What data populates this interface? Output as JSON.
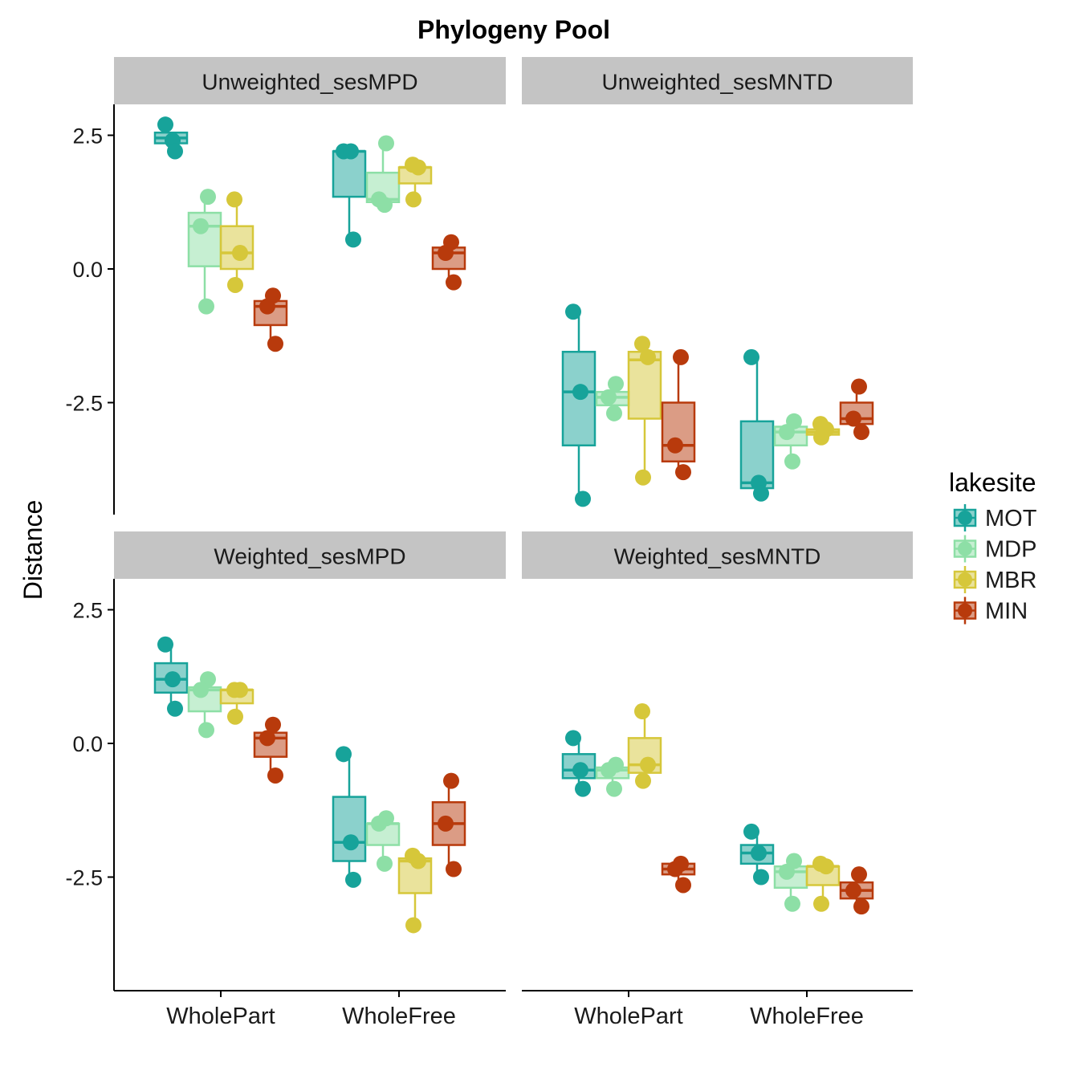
{
  "chart_data": {
    "type": "boxplot",
    "title": "Phylogeny Pool",
    "ylabel": "Distance",
    "xlabel": "",
    "ylim": [
      -4.5,
      2.5
    ],
    "y_ticks": [
      "2.5",
      "0.0",
      "-2.5"
    ],
    "y_tick_values": [
      2.5,
      0.0,
      -2.5
    ],
    "categories": [
      "WholePart",
      "WholeFree"
    ],
    "legend": {
      "title": "lakesite",
      "position": "right",
      "entries": [
        "MOT",
        "MDP",
        "MBR",
        "MIN"
      ]
    },
    "colors": {
      "MOT": "#17a39a",
      "MDP": "#8ddfa6",
      "MBR": "#d6c73a",
      "MIN": "#b83a0c"
    },
    "panels": [
      {
        "name": "Unweighted_sesMPD",
        "groups": [
          {
            "category": "WholePart",
            "series": "MOT",
            "q1": 2.35,
            "median": 2.45,
            "q3": 2.55,
            "low": 2.35,
            "high": 2.55,
            "points": [
              2.7,
              2.4,
              2.2
            ]
          },
          {
            "category": "WholePart",
            "series": "MDP",
            "q1": 0.05,
            "median": 0.8,
            "q3": 1.05,
            "low": -0.7,
            "high": 1.35,
            "points": [
              1.35,
              0.8,
              -0.7
            ]
          },
          {
            "category": "WholePart",
            "series": "MBR",
            "q1": 0.0,
            "median": 0.3,
            "q3": 0.8,
            "low": -0.3,
            "high": 1.3,
            "points": [
              1.3,
              0.3,
              -0.3
            ]
          },
          {
            "category": "WholePart",
            "series": "MIN",
            "q1": -1.05,
            "median": -0.7,
            "q3": -0.6,
            "low": -1.4,
            "high": -0.5,
            "points": [
              -0.5,
              -0.7,
              -1.4
            ]
          },
          {
            "category": "WholeFree",
            "series": "MOT",
            "q1": 1.35,
            "median": 2.2,
            "q3": 2.2,
            "low": 0.55,
            "high": 2.2,
            "points": [
              2.2,
              2.2,
              0.55
            ]
          },
          {
            "category": "WholeFree",
            "series": "MDP",
            "q1": 1.25,
            "median": 1.3,
            "q3": 1.8,
            "low": 1.2,
            "high": 2.35,
            "points": [
              2.35,
              1.3,
              1.2
            ]
          },
          {
            "category": "WholeFree",
            "series": "MBR",
            "q1": 1.6,
            "median": 1.9,
            "q3": 1.9,
            "low": 1.3,
            "high": 1.9,
            "points": [
              1.95,
              1.9,
              1.3
            ]
          },
          {
            "category": "WholeFree",
            "series": "MIN",
            "q1": 0.0,
            "median": 0.3,
            "q3": 0.4,
            "low": -0.25,
            "high": 0.5,
            "points": [
              0.5,
              0.3,
              -0.25
            ]
          }
        ]
      },
      {
        "name": "Unweighted_sesMNTD",
        "groups": [
          {
            "category": "WholePart",
            "series": "MOT",
            "q1": -3.3,
            "median": -2.3,
            "q3": -1.55,
            "low": -4.3,
            "high": -0.8,
            "points": [
              -0.8,
              -2.3,
              -4.3
            ]
          },
          {
            "category": "WholePart",
            "series": "MDP",
            "q1": -2.55,
            "median": -2.4,
            "q3": -2.3,
            "low": -2.7,
            "high": -2.15,
            "points": [
              -2.15,
              -2.4,
              -2.7
            ]
          },
          {
            "category": "WholePart",
            "series": "MBR",
            "q1": -2.8,
            "median": -1.7,
            "q3": -1.55,
            "low": -3.9,
            "high": -1.4,
            "points": [
              -1.4,
              -1.65,
              -3.9
            ]
          },
          {
            "category": "WholePart",
            "series": "MIN",
            "q1": -3.6,
            "median": -3.3,
            "q3": -2.5,
            "low": -3.8,
            "high": -1.65,
            "points": [
              -1.65,
              -3.3,
              -3.8
            ]
          },
          {
            "category": "WholeFree",
            "series": "MOT",
            "q1": -4.1,
            "median": -4.0,
            "q3": -2.85,
            "low": -4.2,
            "high": -1.65,
            "points": [
              -1.65,
              -4.0,
              -4.2
            ]
          },
          {
            "category": "WholeFree",
            "series": "MDP",
            "q1": -3.3,
            "median": -3.05,
            "q3": -2.95,
            "low": -3.6,
            "high": -2.85,
            "points": [
              -2.85,
              -3.05,
              -3.6
            ]
          },
          {
            "category": "WholeFree",
            "series": "MBR",
            "q1": -3.1,
            "median": -3.05,
            "q3": -3.0,
            "low": -3.15,
            "high": -2.9,
            "points": [
              -2.9,
              -3.0,
              -3.15
            ]
          },
          {
            "category": "WholeFree",
            "series": "MIN",
            "q1": -2.9,
            "median": -2.8,
            "q3": -2.5,
            "low": -3.05,
            "high": -2.2,
            "points": [
              -2.2,
              -2.8,
              -3.05
            ]
          }
        ]
      },
      {
        "name": "Weighted_sesMPD",
        "groups": [
          {
            "category": "WholePart",
            "series": "MOT",
            "q1": 0.95,
            "median": 1.2,
            "q3": 1.5,
            "low": 0.65,
            "high": 1.85,
            "points": [
              1.85,
              1.2,
              0.65
            ]
          },
          {
            "category": "WholePart",
            "series": "MDP",
            "q1": 0.6,
            "median": 1.0,
            "q3": 1.05,
            "low": 0.25,
            "high": 1.2,
            "points": [
              1.2,
              1.0,
              0.25
            ]
          },
          {
            "category": "WholePart",
            "series": "MBR",
            "q1": 0.75,
            "median": 1.0,
            "q3": 1.0,
            "low": 0.5,
            "high": 1.0,
            "points": [
              1.0,
              1.0,
              0.5
            ]
          },
          {
            "category": "WholePart",
            "series": "MIN",
            "q1": -0.25,
            "median": 0.1,
            "q3": 0.2,
            "low": -0.6,
            "high": 0.35,
            "points": [
              0.35,
              0.1,
              -0.6
            ]
          },
          {
            "category": "WholeFree",
            "series": "MOT",
            "q1": -2.2,
            "median": -1.85,
            "q3": -1.0,
            "low": -2.55,
            "high": -0.2,
            "points": [
              -0.2,
              -1.85,
              -2.55
            ]
          },
          {
            "category": "WholeFree",
            "series": "MDP",
            "q1": -1.9,
            "median": -1.5,
            "q3": -1.5,
            "low": -2.25,
            "high": -1.4,
            "points": [
              -1.4,
              -1.5,
              -2.25
            ]
          },
          {
            "category": "WholeFree",
            "series": "MBR",
            "q1": -2.8,
            "median": -2.2,
            "q3": -2.15,
            "low": -3.4,
            "high": -2.1,
            "points": [
              -2.1,
              -2.2,
              -3.4
            ]
          },
          {
            "category": "WholeFree",
            "series": "MIN",
            "q1": -1.9,
            "median": -1.5,
            "q3": -1.1,
            "low": -2.35,
            "high": -0.7,
            "points": [
              -0.7,
              -1.5,
              -2.35
            ]
          }
        ]
      },
      {
        "name": "Weighted_sesMNTD",
        "groups": [
          {
            "category": "WholePart",
            "series": "MOT",
            "q1": -0.65,
            "median": -0.5,
            "q3": -0.2,
            "low": -0.85,
            "high": 0.1,
            "points": [
              0.1,
              -0.5,
              -0.85
            ]
          },
          {
            "category": "WholePart",
            "series": "MDP",
            "q1": -0.65,
            "median": -0.5,
            "q3": -0.45,
            "low": -0.85,
            "high": -0.4,
            "points": [
              -0.4,
              -0.5,
              -0.85
            ]
          },
          {
            "category": "WholePart",
            "series": "MBR",
            "q1": -0.55,
            "median": -0.4,
            "q3": 0.1,
            "low": -0.7,
            "high": 0.6,
            "points": [
              0.6,
              -0.4,
              -0.7
            ]
          },
          {
            "category": "WholePart",
            "series": "MIN",
            "q1": -2.45,
            "median": -2.35,
            "q3": -2.25,
            "low": -2.65,
            "high": -2.25,
            "points": [
              -2.25,
              -2.35,
              -2.65
            ]
          },
          {
            "category": "WholeFree",
            "series": "MOT",
            "q1": -2.25,
            "median": -2.05,
            "q3": -1.9,
            "low": -2.5,
            "high": -1.65,
            "points": [
              -1.65,
              -2.05,
              -2.5
            ]
          },
          {
            "category": "WholeFree",
            "series": "MDP",
            "q1": -2.7,
            "median": -2.4,
            "q3": -2.3,
            "low": -3.0,
            "high": -2.2,
            "points": [
              -2.2,
              -2.4,
              -3.0
            ]
          },
          {
            "category": "WholeFree",
            "series": "MBR",
            "q1": -2.65,
            "median": -2.3,
            "q3": -2.3,
            "low": -3.0,
            "high": -2.25,
            "points": [
              -2.25,
              -2.3,
              -3.0
            ]
          },
          {
            "category": "WholeFree",
            "series": "MIN",
            "q1": -2.9,
            "median": -2.75,
            "q3": -2.6,
            "low": -3.05,
            "high": -2.45,
            "points": [
              -2.45,
              -2.75,
              -3.05
            ]
          }
        ]
      }
    ]
  }
}
